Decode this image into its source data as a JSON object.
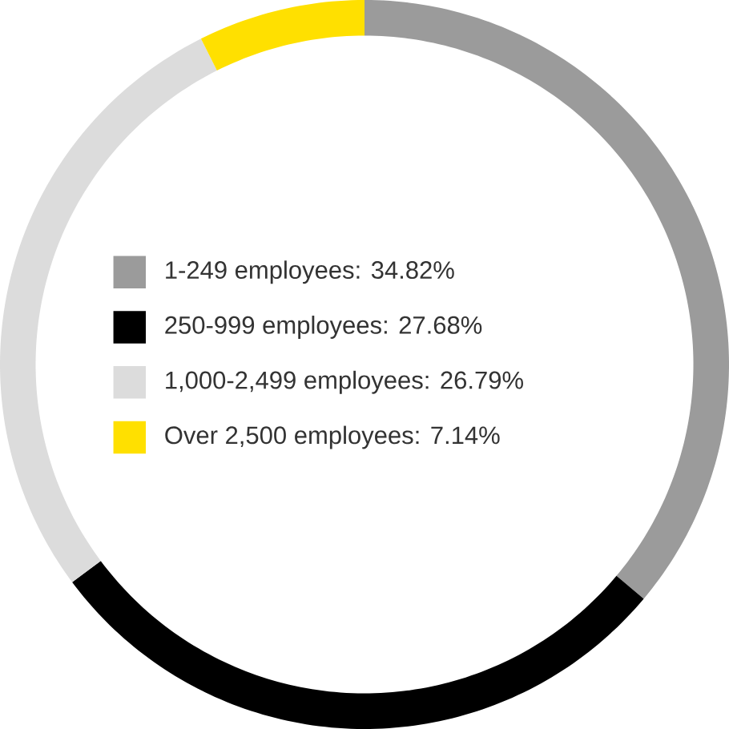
{
  "chart_data": {
    "type": "donut",
    "categories": [
      "1-249 employees: 34.82%",
      "250-999 employees: 27.68%",
      "1,000-2,499 employees: 26.79%",
      "Over 2,500 employees: 7.14%"
    ],
    "values": [
      34.82,
      27.68,
      26.79,
      7.14
    ],
    "colors": [
      "#9b9b9b",
      "#000000",
      "#dcdcdc",
      "#ffe000"
    ],
    "legend": "left"
  }
}
